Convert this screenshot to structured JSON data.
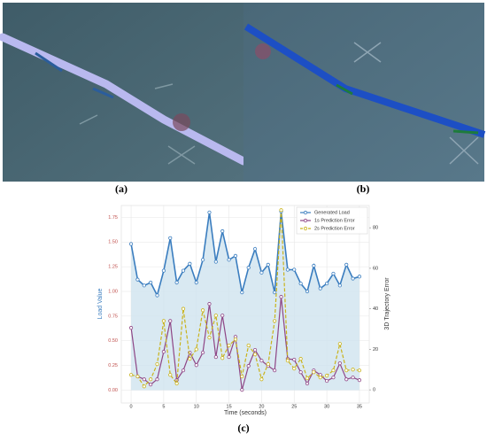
{
  "panels": [
    {
      "label": "(a)"
    },
    {
      "label": "(b)"
    }
  ],
  "chart_data": {
    "type": "line",
    "label": "(c)",
    "x_label": "Time (seconds)",
    "y_label": "Load Value",
    "y2_label": "3D Trajectory Error",
    "x": [
      0,
      1,
      2,
      3,
      4,
      5,
      6,
      7,
      8,
      9,
      10,
      11,
      12,
      13,
      14,
      15,
      16,
      17,
      18,
      19,
      20,
      21,
      22,
      23,
      24,
      25,
      26,
      27,
      28,
      29,
      30,
      31,
      32,
      33,
      34,
      35
    ],
    "xlim": [
      -1.5,
      36.5
    ],
    "xticks": [
      0,
      5,
      10,
      15,
      20,
      25,
      30,
      35
    ],
    "ylim": [
      -0.13,
      1.87
    ],
    "yticks": [
      {
        "value": 0,
        "label": "0.00"
      },
      {
        "value": 0.25,
        "label": "0.25"
      },
      {
        "value": 0.5,
        "label": "0.50"
      },
      {
        "value": 0.75,
        "label": "0.75"
      },
      {
        "value": 1,
        "label": "1.00"
      },
      {
        "value": 1.25,
        "label": "1.25"
      },
      {
        "value": 1.5,
        "label": "1.50"
      },
      {
        "value": 1.75,
        "label": "1.75"
      }
    ],
    "y2lim": [
      -6.5,
      91
    ],
    "y2ticks": [
      0,
      20,
      40,
      60,
      80
    ],
    "grid": true,
    "legend": "upper right",
    "series": [
      {
        "name": "Generated Load",
        "color": "#3a7dbf",
        "linestyle": "solid",
        "fill": "#cfe3ef",
        "values": [
          1.48,
          1.12,
          1.06,
          1.09,
          0.96,
          1.21,
          1.54,
          1.09,
          1.21,
          1.28,
          1.09,
          1.32,
          1.8,
          1.3,
          1.61,
          1.32,
          1.36,
          0.99,
          1.24,
          1.43,
          1.19,
          1.27,
          0.99,
          1.81,
          1.22,
          1.22,
          1.08,
          1.0,
          1.26,
          1.03,
          1.08,
          1.18,
          1.06,
          1.27,
          1.13,
          1.15
        ]
      },
      {
        "name": "1s Prediction Error",
        "color": "#8e4585",
        "linestyle": "solid",
        "axis": "y2",
        "values": [
          30.6,
          6.6,
          5.2,
          2.6,
          5.2,
          18.8,
          34,
          4.8,
          9.6,
          18.4,
          12.2,
          18.4,
          42.4,
          16.2,
          36.7,
          16.2,
          26.2,
          0,
          11.8,
          19.7,
          14.4,
          11.8,
          9.6,
          45.9,
          15.3,
          14.9,
          8.7,
          3.1,
          9.6,
          7.4,
          4.4,
          6.1,
          13.1,
          5.2,
          6.1,
          4.8
        ]
      },
      {
        "name": "2s Prediction Error",
        "color": "#c9b31c",
        "linestyle": "dashed",
        "axis": "y2",
        "values": [
          7.4,
          6.6,
          1.7,
          5.2,
          12.7,
          34,
          7.4,
          3.1,
          40,
          15.3,
          20,
          39.3,
          25.8,
          36.7,
          15.7,
          21.9,
          24.9,
          6.6,
          21.9,
          17.5,
          5.2,
          12.7,
          34,
          88.7,
          14.4,
          10.5,
          15.3,
          5.7,
          8.7,
          6.1,
          7,
          9.6,
          22.7,
          9.6,
          10,
          9.6
        ]
      }
    ]
  }
}
